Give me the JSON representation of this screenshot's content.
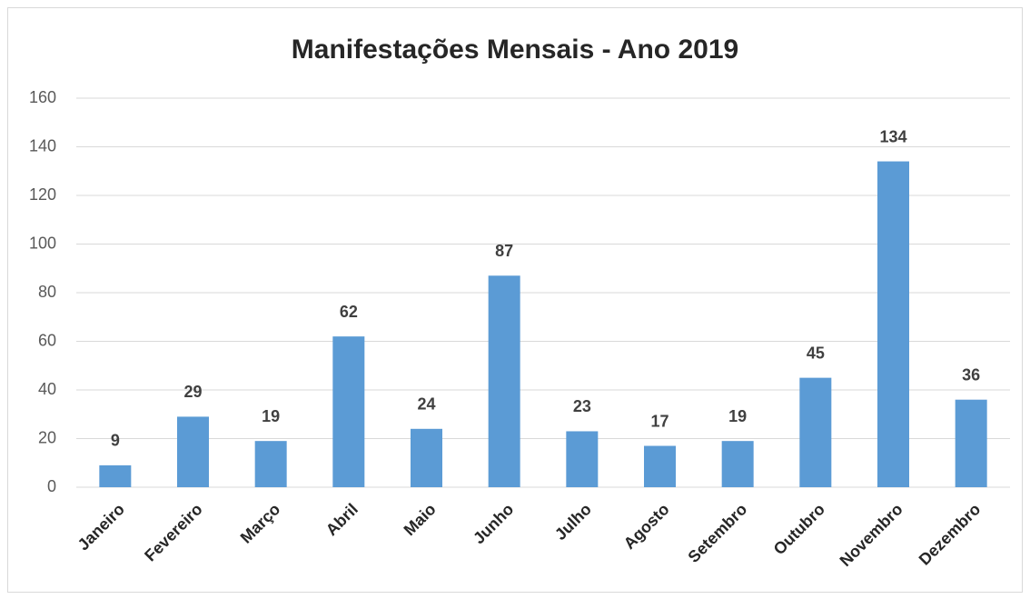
{
  "chart_data": {
    "type": "bar",
    "title": "Manifestações Mensais - Ano 2019",
    "categories": [
      "Janeiro",
      "Fevereiro",
      "Março",
      "Abril",
      "Maio",
      "Junho",
      "Julho",
      "Agosto",
      "Setembro",
      "Outubro",
      "Novembro",
      "Dezembro"
    ],
    "values": [
      9,
      29,
      19,
      62,
      24,
      87,
      23,
      17,
      19,
      45,
      134,
      36
    ],
    "color": "#5b9bd5",
    "ylim": [
      0,
      160
    ],
    "yticks": [
      0,
      20,
      40,
      60,
      80,
      100,
      120,
      140,
      160
    ],
    "grid": true
  }
}
